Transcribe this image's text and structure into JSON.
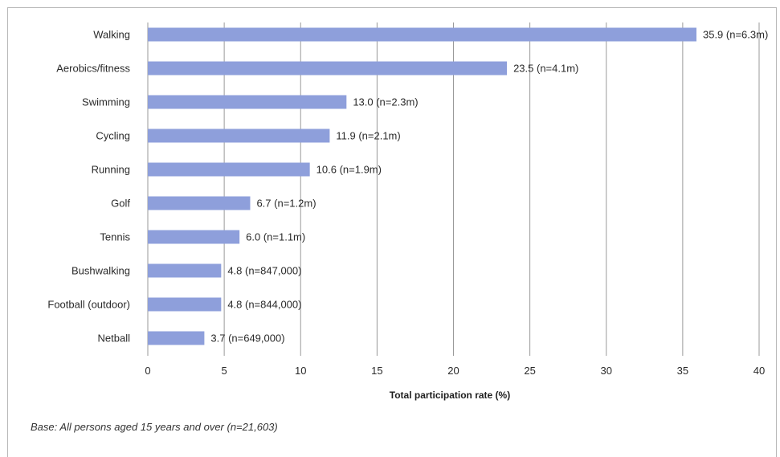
{
  "chart_data": {
    "type": "bar",
    "orientation": "horizontal",
    "categories": [
      "Walking",
      "Aerobics/fitness",
      "Swimming",
      "Cycling",
      "Running",
      "Golf",
      "Tennis",
      "Bushwalking",
      "Football (outdoor)",
      "Netball"
    ],
    "values": [
      35.9,
      23.5,
      13.0,
      11.9,
      10.6,
      6.7,
      6.0,
      4.8,
      4.8,
      3.7
    ],
    "data_labels": [
      "35.9 (n=6.3m)",
      "23.5 (n=4.1m)",
      "13.0 (n=2.3m)",
      "11.9 (n=2.1m)",
      "10.6 (n=1.9m)",
      "6.7 (n=1.2m)",
      "6.0 (n=1.1m)",
      "4.8 (n=847,000)",
      "4.8 (n=844,000)",
      "3.7 (n=649,000)"
    ],
    "xlabel": "Total participation rate (%)",
    "xlim": [
      0,
      40
    ],
    "xticks": [
      0,
      5,
      10,
      15,
      20,
      25,
      30,
      35,
      40
    ],
    "grid": "vertical",
    "bar_color": "#8e9fdb",
    "grid_color": "#9a9a9a"
  },
  "footnote": "Base: All persons aged 15 years and over (n=21,603)"
}
